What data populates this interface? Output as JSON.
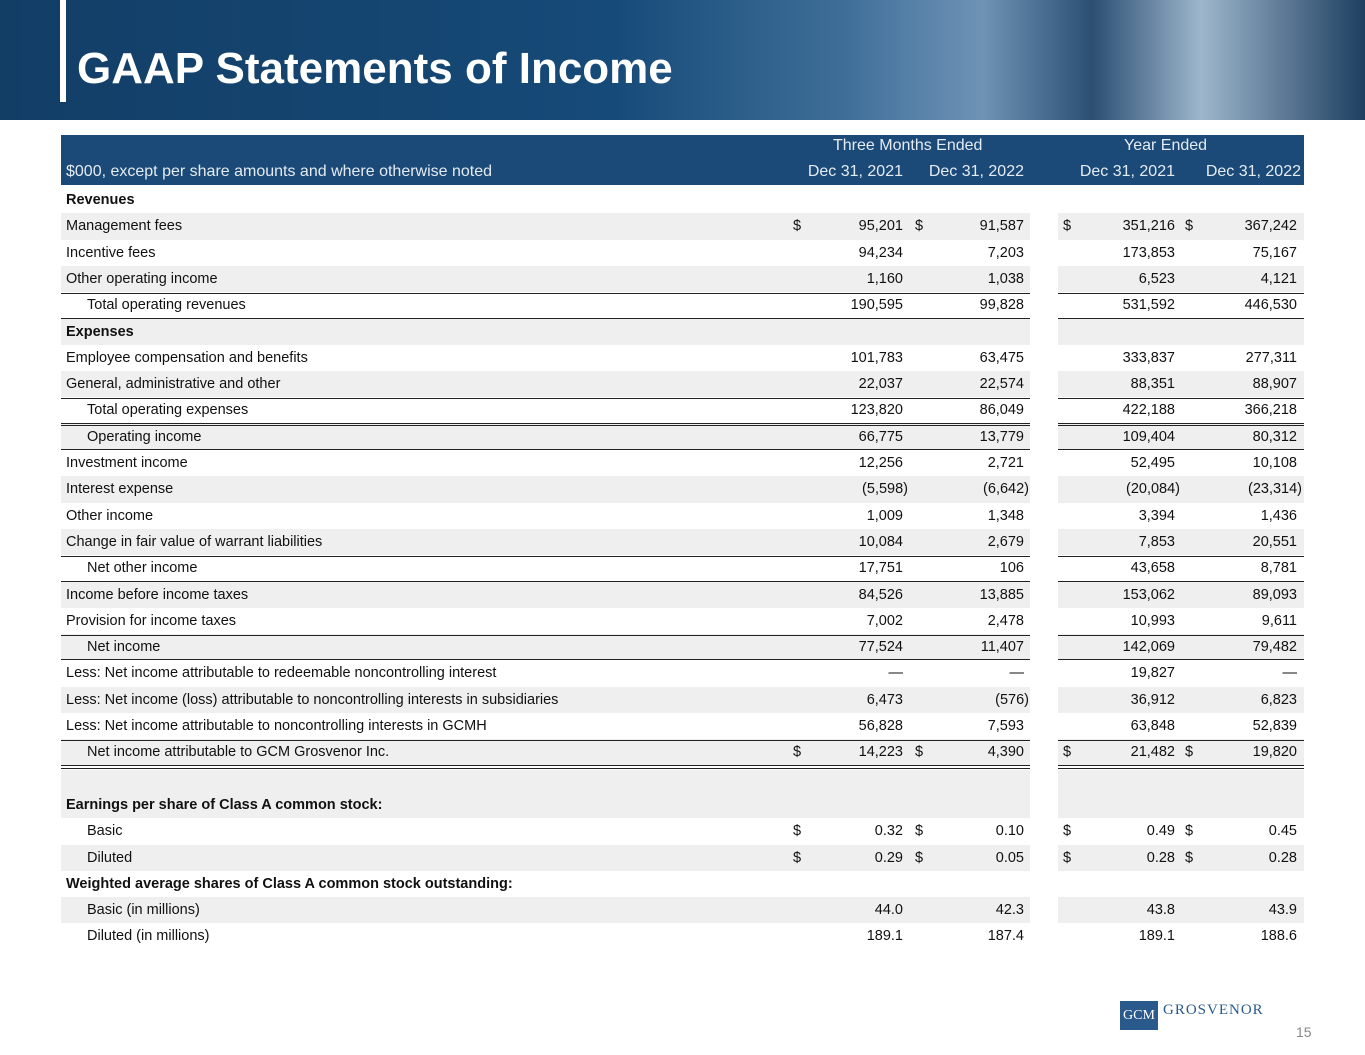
{
  "header": {
    "title": "GAAP Statements of Income"
  },
  "table": {
    "group_headers": [
      "Three Months Ended",
      "Year Ended"
    ],
    "columns": [
      "$000, except per share amounts and where otherwise noted",
      "Dec 31, 2021",
      "Dec 31, 2022",
      "Dec 31, 2021",
      "Dec 31, 2022"
    ],
    "rows": [
      {
        "label": "Revenues",
        "bold": true
      },
      {
        "label": "Management fees",
        "prefix": "$",
        "values": [
          "95,201",
          "91,587",
          "351,216",
          "367,242"
        ]
      },
      {
        "label": "Incentive fees",
        "values": [
          "94,234",
          "7,203",
          "173,853",
          "75,167"
        ]
      },
      {
        "label": "Other operating income",
        "values": [
          "1,160",
          "1,038",
          "6,523",
          "4,121"
        ]
      },
      {
        "label": "Total operating revenues",
        "indent": true,
        "total": true,
        "values": [
          "190,595",
          "99,828",
          "531,592",
          "446,530"
        ]
      },
      {
        "label": "Expenses",
        "bold": true
      },
      {
        "label": "Employee compensation and benefits",
        "values": [
          "101,783",
          "63,475",
          "333,837",
          "277,311"
        ]
      },
      {
        "label": "General, administrative and other",
        "values": [
          "22,037",
          "22,574",
          "88,351",
          "88,907"
        ]
      },
      {
        "label": "Total operating expenses",
        "indent": true,
        "total": true,
        "values": [
          "123,820",
          "86,049",
          "422,188",
          "366,218"
        ]
      },
      {
        "label": "Operating income",
        "indent": true,
        "total": true,
        "values": [
          "66,775",
          "13,779",
          "109,404",
          "80,312"
        ]
      },
      {
        "label": "Investment income",
        "values": [
          "12,256",
          "2,721",
          "52,495",
          "10,108"
        ]
      },
      {
        "label": "Interest expense",
        "values": [
          "(5,598)",
          "(6,642)",
          "(20,084)",
          "(23,314)"
        ]
      },
      {
        "label": "Other income",
        "values": [
          "1,009",
          "1,348",
          "3,394",
          "1,436"
        ]
      },
      {
        "label": "Change in fair value of warrant liabilities",
        "values": [
          "10,084",
          "2,679",
          "7,853",
          "20,551"
        ]
      },
      {
        "label": "Net other income",
        "indent": true,
        "total": true,
        "values": [
          "17,751",
          "106",
          "43,658",
          "8,781"
        ]
      },
      {
        "label": "Income before income taxes",
        "values": [
          "84,526",
          "13,885",
          "153,062",
          "89,093"
        ]
      },
      {
        "label": "Provision for income taxes",
        "values": [
          "7,002",
          "2,478",
          "10,993",
          "9,611"
        ]
      },
      {
        "label": "Net income",
        "indent": true,
        "total": true,
        "values": [
          "77,524",
          "11,407",
          "142,069",
          "79,482"
        ]
      },
      {
        "label": "Less: Net income attributable to redeemable noncontrolling interest",
        "values": [
          "—",
          "—",
          "19,827",
          "—"
        ]
      },
      {
        "label": "Less: Net income (loss) attributable to noncontrolling interests in subsidiaries",
        "values": [
          "6,473",
          "(576)",
          "36,912",
          "6,823"
        ]
      },
      {
        "label": "Less: Net income attributable to noncontrolling interests in GCMH",
        "values": [
          "56,828",
          "7,593",
          "63,848",
          "52,839"
        ]
      },
      {
        "label": "Net income attributable to GCM Grosvenor Inc.",
        "indent": true,
        "total": true,
        "double_rule": true,
        "prefix": "$",
        "values": [
          "14,223",
          "4,390",
          "21,482",
          "19,820"
        ]
      },
      {
        "label": "Earnings per share of Class A common stock:",
        "bold": true
      },
      {
        "label": "Basic",
        "indent": true,
        "prefix": "$",
        "values": [
          "0.32",
          "0.10",
          "0.49",
          "0.45"
        ]
      },
      {
        "label": "Diluted",
        "indent": true,
        "prefix": "$",
        "values": [
          "0.29",
          "0.05",
          "0.28",
          "0.28"
        ]
      },
      {
        "label": "Weighted average shares of Class A common stock outstanding:",
        "bold": true
      },
      {
        "label": "Basic (in millions)",
        "indent": true,
        "values": [
          "44.0",
          "42.3",
          "43.8",
          "43.9"
        ]
      },
      {
        "label": "Diluted (in millions)",
        "indent": true,
        "values": [
          "189.1",
          "187.4",
          "189.1",
          "188.6"
        ]
      }
    ]
  },
  "footer": {
    "logo": [
      "GCM",
      "GROSVENOR"
    ],
    "page": "15"
  }
}
